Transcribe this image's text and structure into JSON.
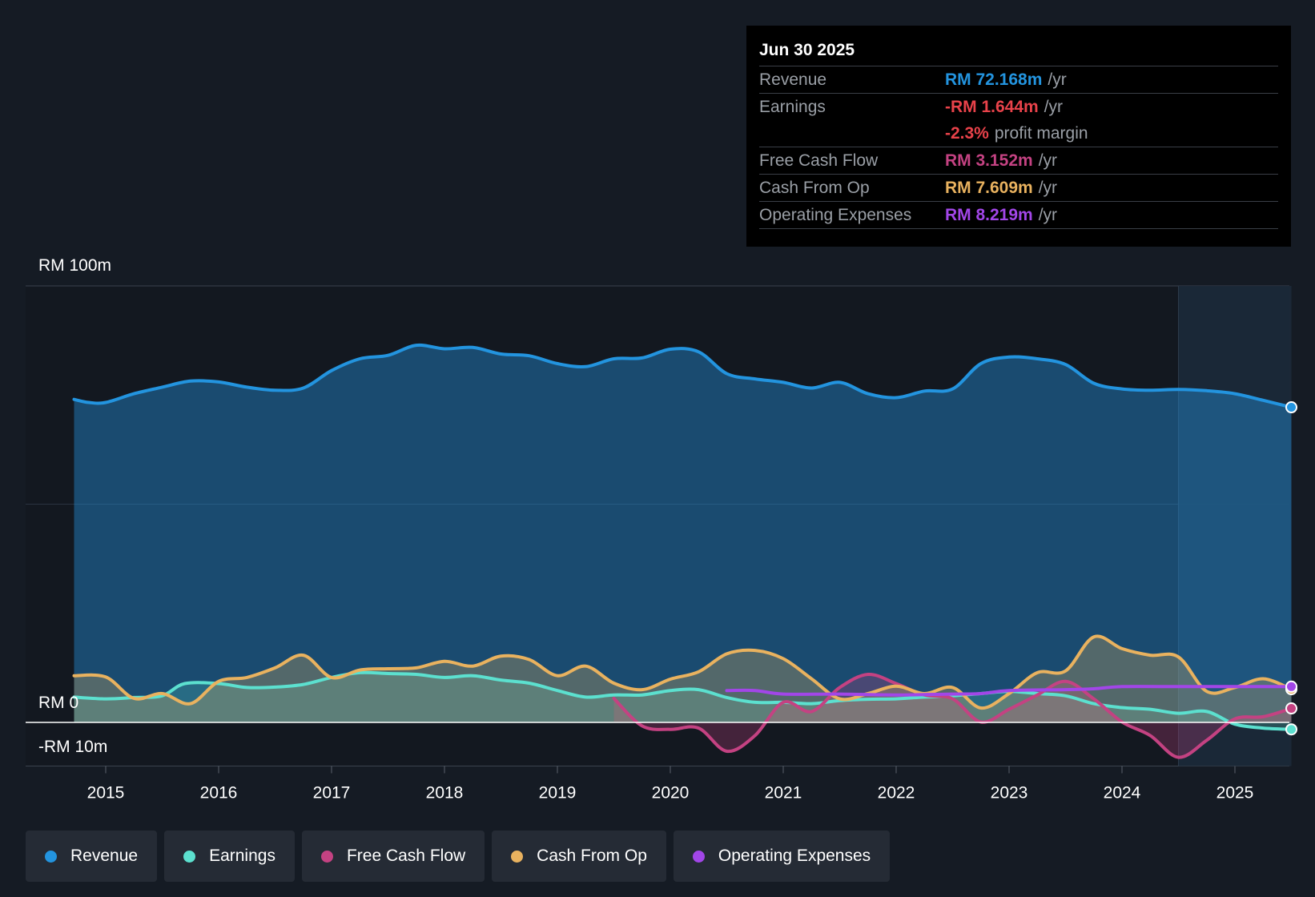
{
  "chart_data": {
    "type": "area",
    "y_axis_labels": [
      "RM 100m",
      "RM 0",
      "-RM 10m"
    ],
    "ylim": [
      -10,
      100
    ],
    "xlim": [
      2014.3,
      2025.5
    ],
    "x_ticks": [
      "2015",
      "2016",
      "2017",
      "2018",
      "2019",
      "2020",
      "2021",
      "2022",
      "2023",
      "2024",
      "2025"
    ],
    "series": [
      {
        "name": "Revenue",
        "color": "#2394df",
        "fill": true,
        "points": [
          [
            2014.72,
            74
          ],
          [
            2014.85,
            73.3
          ],
          [
            2015.0,
            73.3
          ],
          [
            2015.25,
            75.3
          ],
          [
            2015.5,
            76.8
          ],
          [
            2015.75,
            78.2
          ],
          [
            2016.0,
            78.0
          ],
          [
            2016.25,
            76.8
          ],
          [
            2016.5,
            76.1
          ],
          [
            2016.75,
            76.6
          ],
          [
            2017.0,
            80.6
          ],
          [
            2017.25,
            83.3
          ],
          [
            2017.5,
            84.1
          ],
          [
            2017.75,
            86.4
          ],
          [
            2018.0,
            85.6
          ],
          [
            2018.25,
            85.9
          ],
          [
            2018.5,
            84.4
          ],
          [
            2018.75,
            84.0
          ],
          [
            2019.0,
            82.2
          ],
          [
            2019.25,
            81.5
          ],
          [
            2019.5,
            83.3
          ],
          [
            2019.75,
            83.5
          ],
          [
            2020.0,
            85.5
          ],
          [
            2020.25,
            84.9
          ],
          [
            2020.5,
            79.9
          ],
          [
            2020.75,
            78.7
          ],
          [
            2021.0,
            77.9
          ],
          [
            2021.25,
            76.6
          ],
          [
            2021.5,
            77.9
          ],
          [
            2021.75,
            75.3
          ],
          [
            2022.0,
            74.4
          ],
          [
            2022.25,
            75.9
          ],
          [
            2022.5,
            76.4
          ],
          [
            2022.75,
            82.2
          ],
          [
            2023.0,
            83.7
          ],
          [
            2023.25,
            83.3
          ],
          [
            2023.5,
            82.0
          ],
          [
            2023.75,
            77.7
          ],
          [
            2024.0,
            76.4
          ],
          [
            2024.25,
            76.1
          ],
          [
            2024.5,
            76.3
          ],
          [
            2024.75,
            76.0
          ],
          [
            2025.0,
            75.3
          ],
          [
            2025.25,
            73.8
          ],
          [
            2025.5,
            72.2
          ]
        ]
      },
      {
        "name": "Earnings",
        "color": "#5ce0cf",
        "fill": true,
        "points": [
          [
            2014.72,
            5.8
          ],
          [
            2015.0,
            5.4
          ],
          [
            2015.25,
            5.7
          ],
          [
            2015.5,
            6.1
          ],
          [
            2015.7,
            8.9
          ],
          [
            2016.0,
            8.9
          ],
          [
            2016.25,
            8.0
          ],
          [
            2016.5,
            8.1
          ],
          [
            2016.75,
            8.7
          ],
          [
            2017.0,
            10.3
          ],
          [
            2017.25,
            11.4
          ],
          [
            2017.5,
            11.2
          ],
          [
            2017.75,
            11.0
          ],
          [
            2018.0,
            10.3
          ],
          [
            2018.25,
            10.7
          ],
          [
            2018.5,
            9.7
          ],
          [
            2018.75,
            9.0
          ],
          [
            2019.0,
            7.3
          ],
          [
            2019.25,
            5.8
          ],
          [
            2019.5,
            6.3
          ],
          [
            2019.75,
            6.3
          ],
          [
            2020.0,
            7.3
          ],
          [
            2020.25,
            7.5
          ],
          [
            2020.5,
            5.7
          ],
          [
            2020.75,
            4.6
          ],
          [
            2021.0,
            4.6
          ],
          [
            2021.25,
            4.3
          ],
          [
            2021.5,
            5.0
          ],
          [
            2021.75,
            5.3
          ],
          [
            2022.0,
            5.4
          ],
          [
            2022.25,
            5.8
          ],
          [
            2022.5,
            6.1
          ],
          [
            2022.75,
            6.6
          ],
          [
            2023.0,
            7.1
          ],
          [
            2023.25,
            6.6
          ],
          [
            2023.5,
            6.1
          ],
          [
            2023.75,
            4.3
          ],
          [
            2024.0,
            3.4
          ],
          [
            2024.25,
            3.0
          ],
          [
            2024.5,
            2.1
          ],
          [
            2024.75,
            2.5
          ],
          [
            2025.0,
            -0.4
          ],
          [
            2025.25,
            -1.3
          ],
          [
            2025.5,
            -1.6
          ]
        ]
      },
      {
        "name": "Free Cash Flow",
        "color": "#c44282",
        "fill": true,
        "points": [
          [
            2019.5,
            5.5
          ],
          [
            2019.75,
            -0.8
          ],
          [
            2020.0,
            -1.6
          ],
          [
            2020.25,
            -1.3
          ],
          [
            2020.5,
            -6.6
          ],
          [
            2020.75,
            -3.0
          ],
          [
            2021.0,
            4.6
          ],
          [
            2021.25,
            2.5
          ],
          [
            2021.5,
            8.0
          ],
          [
            2021.75,
            11.0
          ],
          [
            2022.0,
            8.9
          ],
          [
            2022.25,
            6.3
          ],
          [
            2022.5,
            5.4
          ],
          [
            2022.75,
            0.1
          ],
          [
            2023.0,
            3.0
          ],
          [
            2023.25,
            6.3
          ],
          [
            2023.5,
            9.4
          ],
          [
            2023.75,
            5.4
          ],
          [
            2024.0,
            0.1
          ],
          [
            2024.25,
            -3.0
          ],
          [
            2024.5,
            -8.0
          ],
          [
            2024.75,
            -4.1
          ],
          [
            2025.0,
            0.8
          ],
          [
            2025.25,
            1.3
          ],
          [
            2025.5,
            3.2
          ]
        ]
      },
      {
        "name": "Cash From Op",
        "color": "#e9b25f",
        "fill": true,
        "points": [
          [
            2014.72,
            10.7
          ],
          [
            2015.0,
            10.4
          ],
          [
            2015.25,
            5.5
          ],
          [
            2015.5,
            6.6
          ],
          [
            2015.75,
            4.3
          ],
          [
            2016.0,
            9.4
          ],
          [
            2016.25,
            10.3
          ],
          [
            2016.5,
            12.5
          ],
          [
            2016.75,
            15.4
          ],
          [
            2017.0,
            10.3
          ],
          [
            2017.25,
            12.0
          ],
          [
            2017.5,
            12.3
          ],
          [
            2017.75,
            12.5
          ],
          [
            2018.0,
            14.0
          ],
          [
            2018.25,
            12.9
          ],
          [
            2018.5,
            15.2
          ],
          [
            2018.75,
            14.4
          ],
          [
            2019.0,
            10.7
          ],
          [
            2019.25,
            12.9
          ],
          [
            2019.5,
            9.0
          ],
          [
            2019.75,
            7.5
          ],
          [
            2020.0,
            9.9
          ],
          [
            2020.25,
            11.6
          ],
          [
            2020.5,
            15.7
          ],
          [
            2020.75,
            16.5
          ],
          [
            2021.0,
            14.6
          ],
          [
            2021.25,
            10.0
          ],
          [
            2021.5,
            5.4
          ],
          [
            2021.75,
            6.6
          ],
          [
            2022.0,
            8.3
          ],
          [
            2022.25,
            6.6
          ],
          [
            2022.5,
            8.0
          ],
          [
            2022.75,
            3.3
          ],
          [
            2023.0,
            6.6
          ],
          [
            2023.25,
            11.4
          ],
          [
            2023.5,
            11.8
          ],
          [
            2023.75,
            19.6
          ],
          [
            2024.0,
            16.9
          ],
          [
            2024.25,
            15.4
          ],
          [
            2024.5,
            15.0
          ],
          [
            2024.75,
            7.1
          ],
          [
            2025.0,
            8.0
          ],
          [
            2025.25,
            10.0
          ],
          [
            2025.5,
            7.6
          ]
        ]
      },
      {
        "name": "Operating Expenses",
        "color": "#a246e8",
        "fill": false,
        "points": [
          [
            2020.5,
            7.3
          ],
          [
            2020.75,
            7.3
          ],
          [
            2021.0,
            6.5
          ],
          [
            2021.5,
            6.5
          ],
          [
            2022.0,
            6.3
          ],
          [
            2022.5,
            6.5
          ],
          [
            2022.75,
            6.6
          ],
          [
            2023.0,
            7.3
          ],
          [
            2023.5,
            7.5
          ],
          [
            2023.75,
            7.7
          ],
          [
            2024.0,
            8.2
          ],
          [
            2024.5,
            8.2
          ],
          [
            2025.0,
            8.2
          ],
          [
            2025.5,
            8.2
          ]
        ]
      }
    ],
    "highlight_region": {
      "x_start": 2024.5,
      "x_end": 2025.5
    },
    "tooltip": {
      "date": "Jun 30 2025",
      "rows": [
        {
          "label": "Revenue",
          "value": "RM 72.168m",
          "unit": "/yr",
          "color": "#2394df"
        },
        {
          "label": "Earnings",
          "value": "-RM 1.644m",
          "unit": "/yr",
          "color": "#e8424a"
        },
        {
          "label": "",
          "value": "-2.3%",
          "unit": "profit margin",
          "color": "#e8424a"
        },
        {
          "label": "Free Cash Flow",
          "value": "RM 3.152m",
          "unit": "/yr",
          "color": "#c44282"
        },
        {
          "label": "Cash From Op",
          "value": "RM 7.609m",
          "unit": "/yr",
          "color": "#e9b25f"
        },
        {
          "label": "Operating Expenses",
          "value": "RM 8.219m",
          "unit": "/yr",
          "color": "#a246e8"
        }
      ]
    },
    "legend": [
      {
        "label": "Revenue",
        "color": "#2394df"
      },
      {
        "label": "Earnings",
        "color": "#5ce0cf"
      },
      {
        "label": "Free Cash Flow",
        "color": "#c44282"
      },
      {
        "label": "Cash From Op",
        "color": "#e9b25f"
      },
      {
        "label": "Operating Expenses",
        "color": "#a246e8"
      }
    ]
  }
}
